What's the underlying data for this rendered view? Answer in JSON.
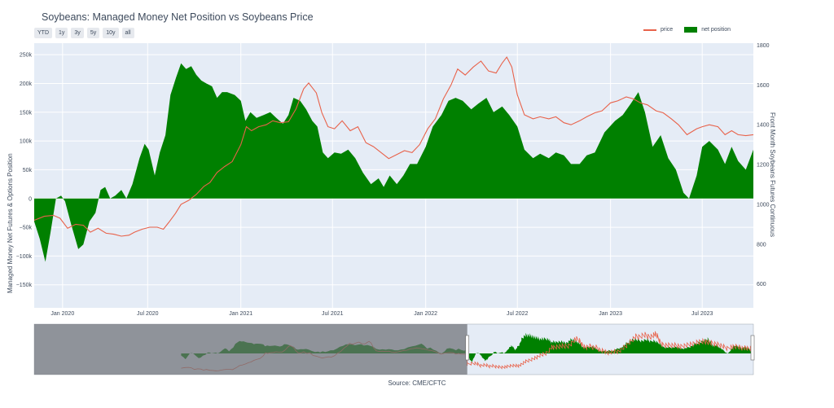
{
  "chart_data": {
    "type": "area+line",
    "title": "Soybeans: Managed Money Net Position vs Soybeans Price",
    "range_buttons": [
      "YTD",
      "1y",
      "3y",
      "5y",
      "10y",
      "all"
    ],
    "legend": [
      {
        "name": "price",
        "color": "#e8624a",
        "style": "line"
      },
      {
        "name": "net position",
        "color": "#008000",
        "style": "fill"
      }
    ],
    "legend_position": "top-right",
    "ylabel_left": "Managed Money Net Futures & Options Position",
    "ylabel_right": "Front Month Soybeans Futures Continuous",
    "source": "Source: CME/CFTC",
    "x_range": [
      "2019-11-20",
      "2023-10-10"
    ],
    "x_ticks": [
      {
        "date": "2020-01-15",
        "label": "Jan 2020"
      },
      {
        "date": "2020-07-01",
        "label": "Jul 2020"
      },
      {
        "date": "2021-01-01",
        "label": "Jan 2021"
      },
      {
        "date": "2021-07-01",
        "label": "Jul 2021"
      },
      {
        "date": "2022-01-01",
        "label": "Jan 2022"
      },
      {
        "date": "2022-07-01",
        "label": "Jul 2022"
      },
      {
        "date": "2023-01-01",
        "label": "Jan 2023"
      },
      {
        "date": "2023-07-01",
        "label": "Jul 2023"
      }
    ],
    "y_left_range": [
      -190000,
      270000
    ],
    "y_left_ticks": [
      {
        "value": 250000,
        "label": "250k"
      },
      {
        "value": 200000,
        "label": "200k"
      },
      {
        "value": 150000,
        "label": "150k"
      },
      {
        "value": 100000,
        "label": "100k"
      },
      {
        "value": 50000,
        "label": "50k"
      },
      {
        "value": 0,
        "label": "0"
      },
      {
        "value": -50000,
        "label": "−50k"
      },
      {
        "value": -100000,
        "label": "−100k"
      },
      {
        "value": -150000,
        "label": "−150k"
      }
    ],
    "y_right_range": [
      480,
      1810
    ],
    "y_right_ticks": [
      {
        "value": 1800,
        "label": "1800"
      },
      {
        "value": 1600,
        "label": "1600"
      },
      {
        "value": 1400,
        "label": "1400"
      },
      {
        "value": 1200,
        "label": "1200"
      },
      {
        "value": 1000,
        "label": "1000"
      },
      {
        "value": 800,
        "label": "800"
      },
      {
        "value": 600,
        "label": "600"
      }
    ],
    "series": [
      {
        "name": "net position",
        "axis": "left",
        "points": [
          [
            "2019-11-20",
            -40000
          ],
          [
            "2019-12-01",
            -70000
          ],
          [
            "2019-12-12",
            -110000
          ],
          [
            "2019-12-22",
            -60000
          ],
          [
            "2020-01-02",
            0
          ],
          [
            "2020-01-12",
            5000
          ],
          [
            "2020-01-20",
            -5000
          ],
          [
            "2020-02-01",
            -45000
          ],
          [
            "2020-02-15",
            -88000
          ],
          [
            "2020-02-25",
            -80000
          ],
          [
            "2020-03-08",
            -40000
          ],
          [
            "2020-03-20",
            -25000
          ],
          [
            "2020-03-30",
            15000
          ],
          [
            "2020-04-08",
            20000
          ],
          [
            "2020-04-18",
            0
          ],
          [
            "2020-04-28",
            5000
          ],
          [
            "2020-05-10",
            15000
          ],
          [
            "2020-05-20",
            0
          ],
          [
            "2020-06-01",
            25000
          ],
          [
            "2020-06-15",
            70000
          ],
          [
            "2020-06-25",
            95000
          ],
          [
            "2020-07-03",
            85000
          ],
          [
            "2020-07-15",
            40000
          ],
          [
            "2020-07-25",
            80000
          ],
          [
            "2020-08-05",
            110000
          ],
          [
            "2020-08-15",
            180000
          ],
          [
            "2020-08-26",
            210000
          ],
          [
            "2020-09-05",
            235000
          ],
          [
            "2020-09-15",
            225000
          ],
          [
            "2020-09-25",
            230000
          ],
          [
            "2020-10-05",
            215000
          ],
          [
            "2020-10-15",
            205000
          ],
          [
            "2020-10-25",
            200000
          ],
          [
            "2020-11-05",
            195000
          ],
          [
            "2020-11-15",
            175000
          ],
          [
            "2020-11-25",
            185000
          ],
          [
            "2020-12-05",
            185000
          ],
          [
            "2020-12-20",
            180000
          ],
          [
            "2021-01-01",
            170000
          ],
          [
            "2021-01-10",
            135000
          ],
          [
            "2021-01-20",
            150000
          ],
          [
            "2021-02-01",
            140000
          ],
          [
            "2021-02-15",
            145000
          ],
          [
            "2021-02-28",
            150000
          ],
          [
            "2021-03-12",
            140000
          ],
          [
            "2021-03-25",
            130000
          ],
          [
            "2021-04-05",
            145000
          ],
          [
            "2021-04-15",
            175000
          ],
          [
            "2021-04-28",
            170000
          ],
          [
            "2021-05-10",
            155000
          ],
          [
            "2021-05-22",
            135000
          ],
          [
            "2021-06-01",
            125000
          ],
          [
            "2021-06-12",
            80000
          ],
          [
            "2021-06-22",
            70000
          ],
          [
            "2021-07-05",
            80000
          ],
          [
            "2021-07-18",
            78000
          ],
          [
            "2021-08-01",
            85000
          ],
          [
            "2021-08-15",
            70000
          ],
          [
            "2021-08-30",
            45000
          ],
          [
            "2021-09-15",
            25000
          ],
          [
            "2021-09-30",
            35000
          ],
          [
            "2021-10-10",
            20000
          ],
          [
            "2021-10-22",
            40000
          ],
          [
            "2021-11-05",
            25000
          ],
          [
            "2021-11-18",
            40000
          ],
          [
            "2021-12-01",
            60000
          ],
          [
            "2021-12-15",
            60000
          ],
          [
            "2022-01-01",
            90000
          ],
          [
            "2022-01-15",
            125000
          ],
          [
            "2022-02-01",
            145000
          ],
          [
            "2022-02-15",
            170000
          ],
          [
            "2022-03-01",
            175000
          ],
          [
            "2022-03-15",
            170000
          ],
          [
            "2022-04-01",
            155000
          ],
          [
            "2022-04-15",
            165000
          ],
          [
            "2022-05-01",
            175000
          ],
          [
            "2022-05-15",
            150000
          ],
          [
            "2022-06-01",
            160000
          ],
          [
            "2022-06-15",
            145000
          ],
          [
            "2022-07-01",
            125000
          ],
          [
            "2022-07-15",
            85000
          ],
          [
            "2022-08-01",
            70000
          ],
          [
            "2022-08-15",
            78000
          ],
          [
            "2022-09-01",
            70000
          ],
          [
            "2022-09-15",
            80000
          ],
          [
            "2022-10-01",
            75000
          ],
          [
            "2022-10-15",
            60000
          ],
          [
            "2022-11-01",
            60000
          ],
          [
            "2022-11-15",
            75000
          ],
          [
            "2022-12-01",
            80000
          ],
          [
            "2022-12-20",
            115000
          ],
          [
            "2023-01-10",
            135000
          ],
          [
            "2023-01-25",
            145000
          ],
          [
            "2023-02-10",
            165000
          ],
          [
            "2023-02-25",
            185000
          ],
          [
            "2023-03-10",
            150000
          ],
          [
            "2023-03-25",
            90000
          ],
          [
            "2023-04-10",
            110000
          ],
          [
            "2023-04-25",
            70000
          ],
          [
            "2023-05-10",
            50000
          ],
          [
            "2023-05-25",
            10000
          ],
          [
            "2023-06-05",
            0
          ],
          [
            "2023-06-20",
            40000
          ],
          [
            "2023-07-01",
            90000
          ],
          [
            "2023-07-15",
            100000
          ],
          [
            "2023-08-01",
            85000
          ],
          [
            "2023-08-15",
            60000
          ],
          [
            "2023-08-28",
            90000
          ],
          [
            "2023-09-10",
            65000
          ],
          [
            "2023-09-25",
            50000
          ],
          [
            "2023-10-10",
            85000
          ]
        ]
      },
      {
        "name": "price",
        "axis": "right",
        "points": [
          [
            "2019-11-20",
            920
          ],
          [
            "2019-12-10",
            940
          ],
          [
            "2019-12-28",
            945
          ],
          [
            "2020-01-10",
            930
          ],
          [
            "2020-01-25",
            880
          ],
          [
            "2020-02-10",
            900
          ],
          [
            "2020-02-25",
            895
          ],
          [
            "2020-03-10",
            860
          ],
          [
            "2020-03-25",
            880
          ],
          [
            "2020-04-10",
            855
          ],
          [
            "2020-04-25",
            850
          ],
          [
            "2020-05-10",
            840
          ],
          [
            "2020-05-25",
            845
          ],
          [
            "2020-06-05",
            860
          ],
          [
            "2020-06-20",
            875
          ],
          [
            "2020-07-05",
            885
          ],
          [
            "2020-07-20",
            885
          ],
          [
            "2020-08-01",
            875
          ],
          [
            "2020-08-12",
            910
          ],
          [
            "2020-08-25",
            955
          ],
          [
            "2020-09-05",
            1000
          ],
          [
            "2020-09-20",
            1020
          ],
          [
            "2020-10-05",
            1050
          ],
          [
            "2020-10-20",
            1090
          ],
          [
            "2020-11-01",
            1110
          ],
          [
            "2020-11-15",
            1160
          ],
          [
            "2020-11-30",
            1190
          ],
          [
            "2020-12-15",
            1215
          ],
          [
            "2021-01-01",
            1300
          ],
          [
            "2021-01-12",
            1390
          ],
          [
            "2021-01-22",
            1370
          ],
          [
            "2021-02-05",
            1390
          ],
          [
            "2021-02-20",
            1400
          ],
          [
            "2021-03-05",
            1420
          ],
          [
            "2021-03-20",
            1410
          ],
          [
            "2021-04-05",
            1415
          ],
          [
            "2021-04-20",
            1480
          ],
          [
            "2021-05-05",
            1580
          ],
          [
            "2021-05-15",
            1610
          ],
          [
            "2021-05-30",
            1560
          ],
          [
            "2021-06-10",
            1460
          ],
          [
            "2021-06-22",
            1390
          ],
          [
            "2021-07-05",
            1380
          ],
          [
            "2021-07-20",
            1420
          ],
          [
            "2021-08-05",
            1370
          ],
          [
            "2021-08-20",
            1390
          ],
          [
            "2021-09-05",
            1310
          ],
          [
            "2021-09-20",
            1290
          ],
          [
            "2021-10-05",
            1260
          ],
          [
            "2021-10-20",
            1230
          ],
          [
            "2021-11-05",
            1250
          ],
          [
            "2021-11-20",
            1270
          ],
          [
            "2021-12-05",
            1260
          ],
          [
            "2021-12-20",
            1300
          ],
          [
            "2022-01-05",
            1380
          ],
          [
            "2022-01-20",
            1430
          ],
          [
            "2022-02-05",
            1530
          ],
          [
            "2022-02-20",
            1600
          ],
          [
            "2022-03-05",
            1680
          ],
          [
            "2022-03-20",
            1650
          ],
          [
            "2022-04-05",
            1690
          ],
          [
            "2022-04-20",
            1720
          ],
          [
            "2022-05-05",
            1670
          ],
          [
            "2022-05-20",
            1660
          ],
          [
            "2022-06-01",
            1710
          ],
          [
            "2022-06-10",
            1740
          ],
          [
            "2022-06-20",
            1690
          ],
          [
            "2022-07-01",
            1550
          ],
          [
            "2022-07-15",
            1450
          ],
          [
            "2022-08-01",
            1430
          ],
          [
            "2022-08-15",
            1440
          ],
          [
            "2022-09-01",
            1430
          ],
          [
            "2022-09-15",
            1440
          ],
          [
            "2022-10-01",
            1410
          ],
          [
            "2022-10-15",
            1400
          ],
          [
            "2022-11-01",
            1420
          ],
          [
            "2022-11-15",
            1440
          ],
          [
            "2022-12-01",
            1460
          ],
          [
            "2022-12-15",
            1470
          ],
          [
            "2023-01-01",
            1510
          ],
          [
            "2023-01-15",
            1520
          ],
          [
            "2023-02-01",
            1540
          ],
          [
            "2023-02-15",
            1530
          ],
          [
            "2023-03-01",
            1510
          ],
          [
            "2023-03-15",
            1500
          ],
          [
            "2023-04-01",
            1470
          ],
          [
            "2023-04-15",
            1460
          ],
          [
            "2023-05-01",
            1430
          ],
          [
            "2023-05-15",
            1400
          ],
          [
            "2023-06-01",
            1350
          ],
          [
            "2023-06-20",
            1380
          ],
          [
            "2023-07-01",
            1390
          ],
          [
            "2023-07-15",
            1400
          ],
          [
            "2023-08-01",
            1390
          ],
          [
            "2023-08-15",
            1350
          ],
          [
            "2023-08-28",
            1370
          ],
          [
            "2023-09-10",
            1350
          ],
          [
            "2023-09-25",
            1345
          ],
          [
            "2023-10-10",
            1350
          ]
        ]
      }
    ],
    "rangeslider": {
      "full_range": [
        "2014-01-01",
        "2023-10-10"
      ],
      "selected_range": [
        "2019-11-20",
        "2023-10-10"
      ]
    }
  }
}
